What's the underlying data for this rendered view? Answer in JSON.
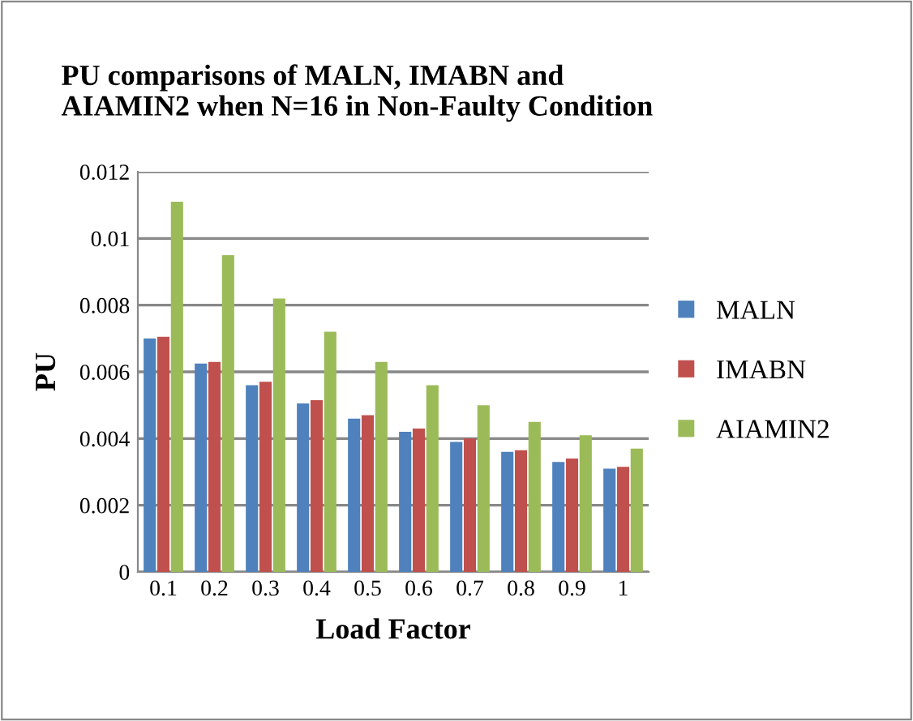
{
  "chart_data": {
    "type": "bar",
    "title": "PU comparisons of MALN, IMABN and\nAIAMIN2 when N=16 in Non-Faulty Condition",
    "xlabel": "Load Factor",
    "ylabel": "PU",
    "categories": [
      "0.1",
      "0.2",
      "0.3",
      "0.4",
      "0.5",
      "0.6",
      "0.7",
      "0.8",
      "0.9",
      "1"
    ],
    "series": [
      {
        "name": "MALN",
        "color": "#4f81bd",
        "values": [
          0.007,
          0.00625,
          0.0056,
          0.00505,
          0.0046,
          0.0042,
          0.0039,
          0.0036,
          0.0033,
          0.0031
        ]
      },
      {
        "name": "IMABN",
        "color": "#c0504d",
        "values": [
          0.00705,
          0.0063,
          0.0057,
          0.00515,
          0.0047,
          0.0043,
          0.004,
          0.00365,
          0.0034,
          0.00315
        ]
      },
      {
        "name": "AIAMIN2",
        "color": "#9bbb59",
        "values": [
          0.0111,
          0.0095,
          0.0082,
          0.0072,
          0.0063,
          0.0056,
          0.005,
          0.0045,
          0.0041,
          0.0037
        ]
      }
    ],
    "ylim": [
      0,
      0.012
    ],
    "yticks": [
      0,
      0.002,
      0.004,
      0.006,
      0.008,
      0.01,
      0.012
    ],
    "grid": "y",
    "legend": "right"
  }
}
